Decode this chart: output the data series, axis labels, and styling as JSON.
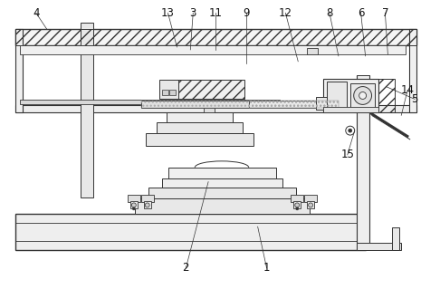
{
  "bg_color": "#ffffff",
  "line_color": "#333333",
  "fig_width": 4.86,
  "fig_height": 3.19,
  "dpi": 100
}
